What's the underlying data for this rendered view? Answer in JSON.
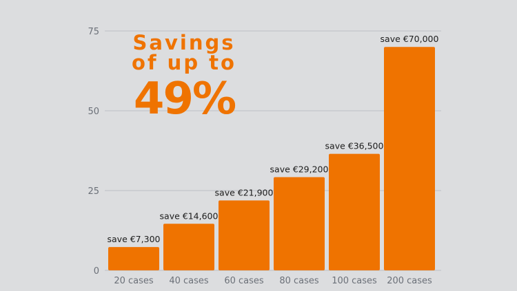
{
  "headline": {
    "line1": "Savings",
    "line2": "of up to",
    "percent": "49%"
  },
  "colors": {
    "bar": "#ef7300",
    "headline": "#ef7300",
    "background": "#dcdddf",
    "grid": "#bcbfc6",
    "tick_label": "#6b7078",
    "data_label": "#1c1c1c"
  },
  "chart_data": {
    "type": "bar",
    "categories": [
      "20 cases",
      "40 cases",
      "60 cases",
      "80 cases",
      "100 cases",
      "200 cases"
    ],
    "values": [
      7.3,
      14.6,
      21.9,
      29.2,
      36.5,
      70.0
    ],
    "data_labels": [
      "save €7,300",
      "save €14,600",
      "save €21,900",
      "save €29,200",
      "save €36,500",
      "save €70,000"
    ],
    "yticks": [
      0,
      25,
      50,
      75
    ],
    "ylim": [
      0,
      75
    ],
    "grid": true,
    "title": "",
    "xlabel": "",
    "ylabel": ""
  }
}
